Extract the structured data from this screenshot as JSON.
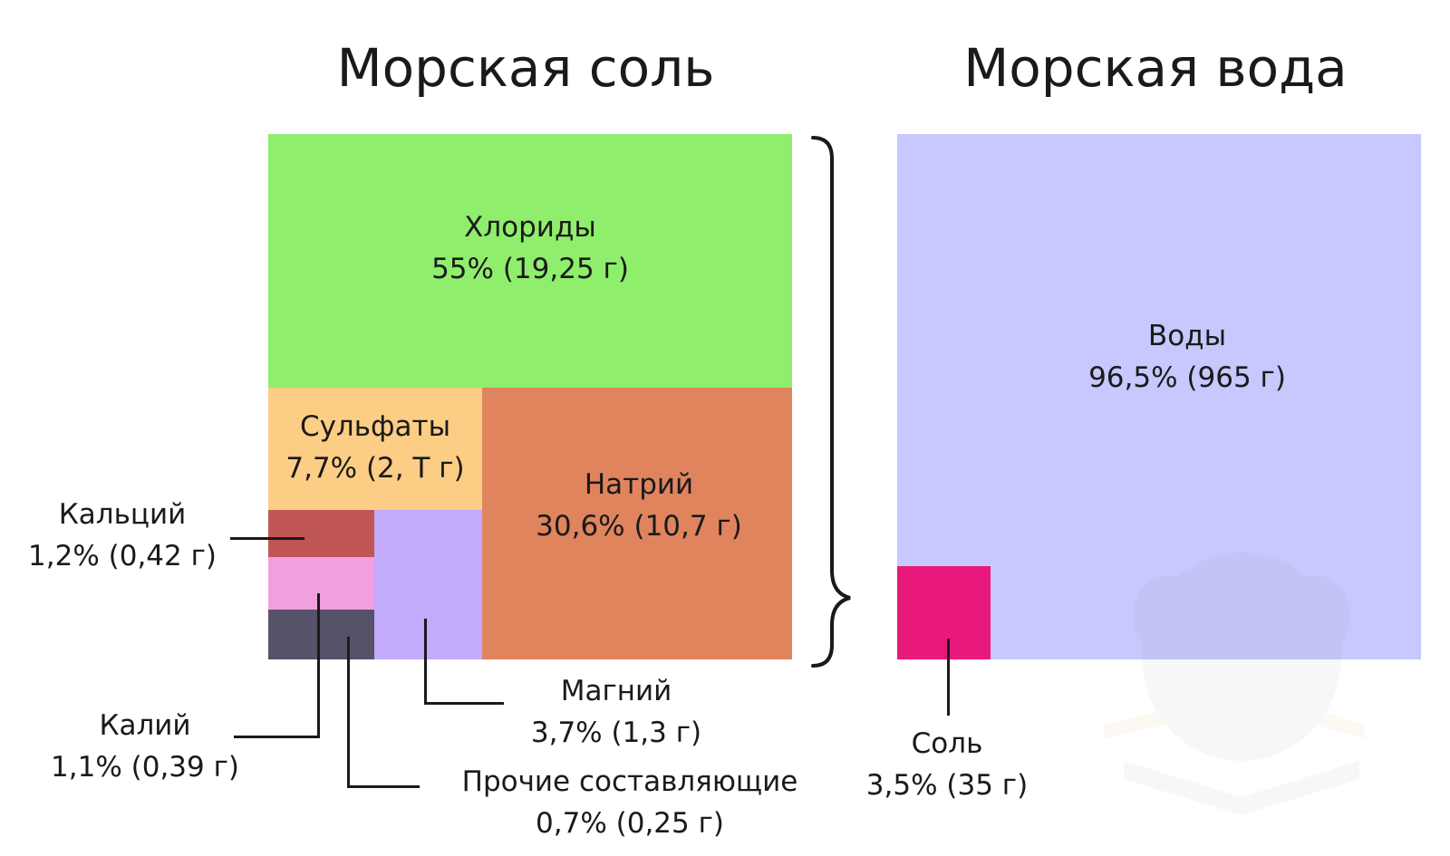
{
  "chart_data": [
    {
      "type": "treemap",
      "title": "Морская соль",
      "items": [
        {
          "key": "chlorides",
          "name": "Хлориды",
          "value_label": "55% (19,25 г)",
          "percent": 55,
          "grams": 19.25,
          "color": "#8fee6c"
        },
        {
          "key": "sodium",
          "name": "Натрий",
          "value_label": "30,6% (10,7 г)",
          "percent": 30.6,
          "grams": 10.7,
          "color": "#e0845e"
        },
        {
          "key": "sulfates",
          "name": "Сульфаты",
          "value_label": "7,7% (2, Т г)",
          "percent": 7.7,
          "color": "#fccd85"
        },
        {
          "key": "magnesium",
          "name": "Магний",
          "value_label": "3,7% (1,3 г)",
          "percent": 3.7,
          "grams": 1.3,
          "color": "#c1abfa"
        },
        {
          "key": "calcium",
          "name": "Кальций",
          "value_label": "1,2% (0,42 г)",
          "percent": 1.2,
          "grams": 0.42,
          "color": "#c05556"
        },
        {
          "key": "potassium",
          "name": "Калий",
          "value_label": "1,1% (0,39 г)",
          "percent": 1.1,
          "grams": 0.39,
          "color": "#f29fdf"
        },
        {
          "key": "other",
          "name": "Прочие составляющие",
          "value_label": "0,7% (0,25 г)",
          "percent": 0.7,
          "grams": 0.25,
          "color": "#58516a"
        }
      ]
    },
    {
      "type": "treemap",
      "title": "Морская вода",
      "items": [
        {
          "key": "water",
          "name": "Воды",
          "value_label": "96,5% (965 г)",
          "percent": 96.5,
          "grams": 965,
          "color": "#c6c8fe"
        },
        {
          "key": "salt",
          "name": "Соль",
          "value_label": "3,5% (35 г)",
          "percent": 3.5,
          "grams": 35,
          "color": "#e8197b"
        }
      ]
    }
  ]
}
